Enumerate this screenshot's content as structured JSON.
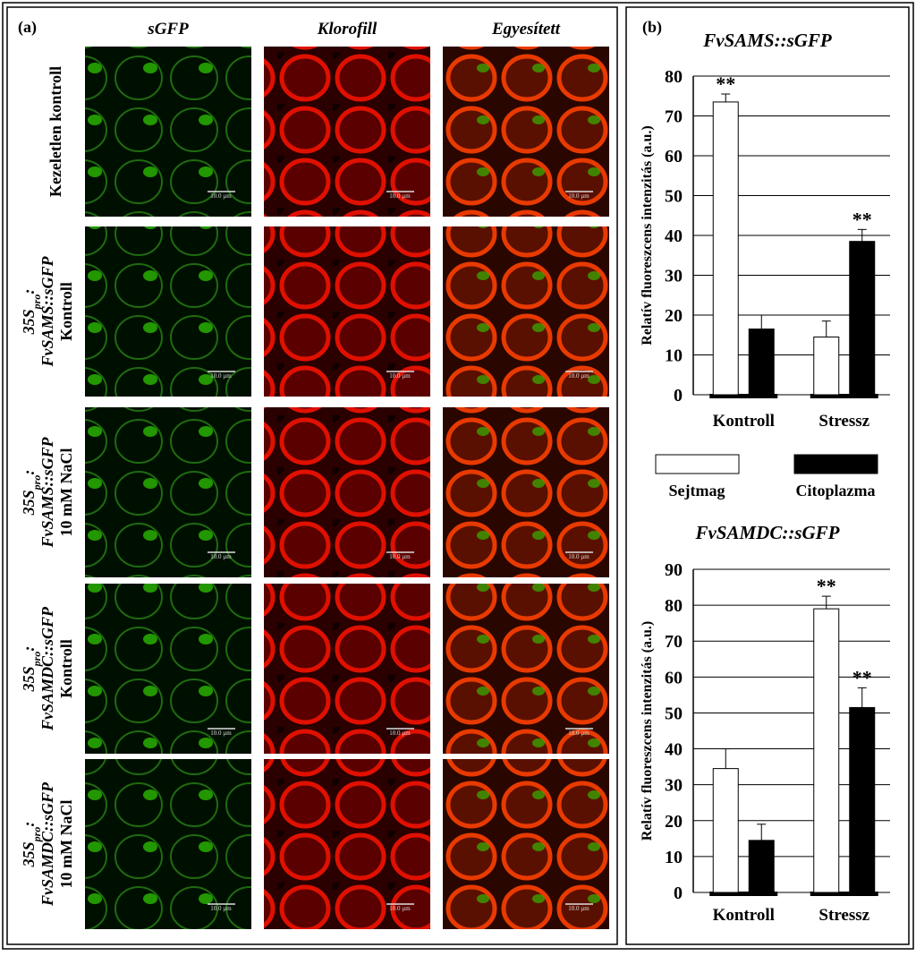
{
  "panel_a": {
    "label": "(a)",
    "columns": [
      "sGFP",
      "Klorofill",
      "Egyesített"
    ],
    "rows": [
      {
        "lines": [
          [
            "Kezeletlen kontroll"
          ]
        ]
      },
      {
        "lines": [
          [
            "35S",
            "pro",
            ":"
          ],
          [
            "FvSAMS::sGFP"
          ],
          [
            "Kontroll"
          ]
        ]
      },
      {
        "lines": [
          [
            "35S",
            "pro",
            ":"
          ],
          [
            "FvSAMS::sGFP"
          ],
          [
            "10 mM NaCl"
          ]
        ]
      },
      {
        "lines": [
          [
            "35S",
            "pro",
            ":"
          ],
          [
            "FvSAMDC::sGFP"
          ],
          [
            "Kontroll"
          ]
        ]
      },
      {
        "lines": [
          [
            "35S",
            "pro",
            ":"
          ],
          [
            "FvSAMDC::sGFP"
          ],
          [
            "10 mM NaCl"
          ]
        ]
      }
    ],
    "scale_bar_label": "10.0 µm"
  },
  "panel_b": {
    "label": "(b)"
  },
  "chart_data": [
    {
      "type": "bar",
      "title": "FvSAMS::sGFP",
      "y_label": "Relatív fluoreszcens intenzitás (a.u.)",
      "categories": [
        "Kontroll",
        "Stressz"
      ],
      "series": [
        {
          "name": "Sejtmag",
          "color": "#ffffff",
          "values": [
            73.5,
            14.5
          ],
          "errors": [
            2,
            4
          ]
        },
        {
          "name": "Citoplazma",
          "color": "#000000",
          "values": [
            16.5,
            38.5
          ],
          "errors": [
            3.5,
            3
          ]
        }
      ],
      "annotations": [
        {
          "text": "**",
          "series": 0,
          "index": 0
        },
        {
          "text": "**",
          "series": 1,
          "index": 1
        }
      ],
      "ylim": [
        0,
        80
      ],
      "yticks": [
        0,
        10,
        20,
        30,
        40,
        50,
        60,
        70,
        80
      ],
      "grid": true
    },
    {
      "type": "bar",
      "title": "FvSAMDC::sGFP",
      "y_label": "Relatív fluoreszcens intenzitás (a.u.)",
      "categories": [
        "Kontroll",
        "Stressz"
      ],
      "series": [
        {
          "color": "#ffffff",
          "values": [
            34.5,
            79
          ],
          "errors": [
            5.5,
            3.5
          ]
        },
        {
          "color": "#000000",
          "values": [
            14.5,
            51.5
          ],
          "errors": [
            4.5,
            5.5
          ]
        }
      ],
      "annotations": [
        {
          "text": "**",
          "series": 0,
          "index": 1
        },
        {
          "text": "**",
          "series": 1,
          "index": 1
        }
      ],
      "ylim": [
        0,
        90
      ],
      "yticks": [
        0,
        10,
        20,
        30,
        40,
        50,
        60,
        70,
        80,
        90
      ],
      "grid": true
    }
  ]
}
